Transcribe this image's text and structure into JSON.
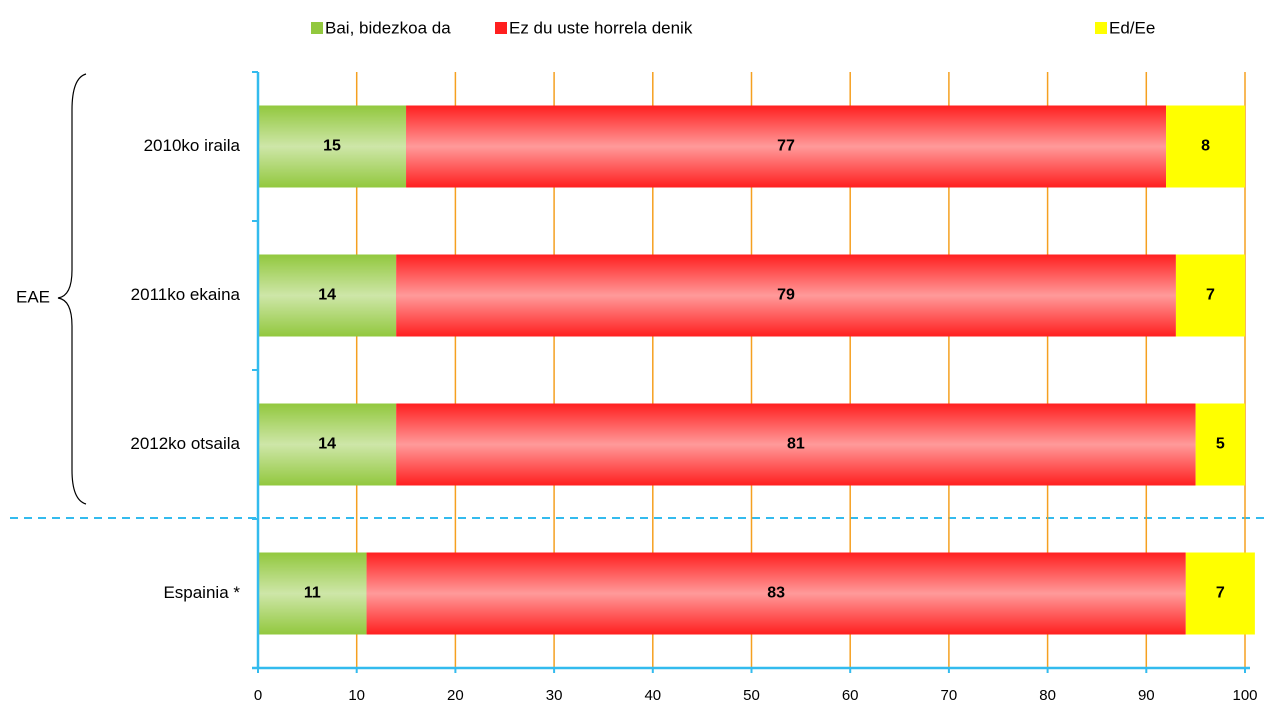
{
  "chart_data": {
    "type": "stacked-bar-horizontal",
    "group_label": "EAE",
    "categories": [
      "2010ko iraila",
      "2011ko ekaina",
      "2012ko otsaila",
      "Espainia *"
    ],
    "series": [
      {
        "name": "Bai, bidezkoa da",
        "color": "#92c83e",
        "values": [
          15,
          14,
          14,
          11
        ]
      },
      {
        "name": "Ez du uste horrela denik",
        "color": "#ff1f1f",
        "values": [
          77,
          79,
          81,
          83
        ]
      },
      {
        "name": "Ed/Ee",
        "color": "#ffff00",
        "values": [
          8,
          7,
          5,
          7
        ]
      }
    ],
    "xlim": [
      0,
      100
    ],
    "xticks": [
      0,
      10,
      20,
      30,
      40,
      50,
      60,
      70,
      80,
      90,
      100
    ],
    "grid": true
  }
}
